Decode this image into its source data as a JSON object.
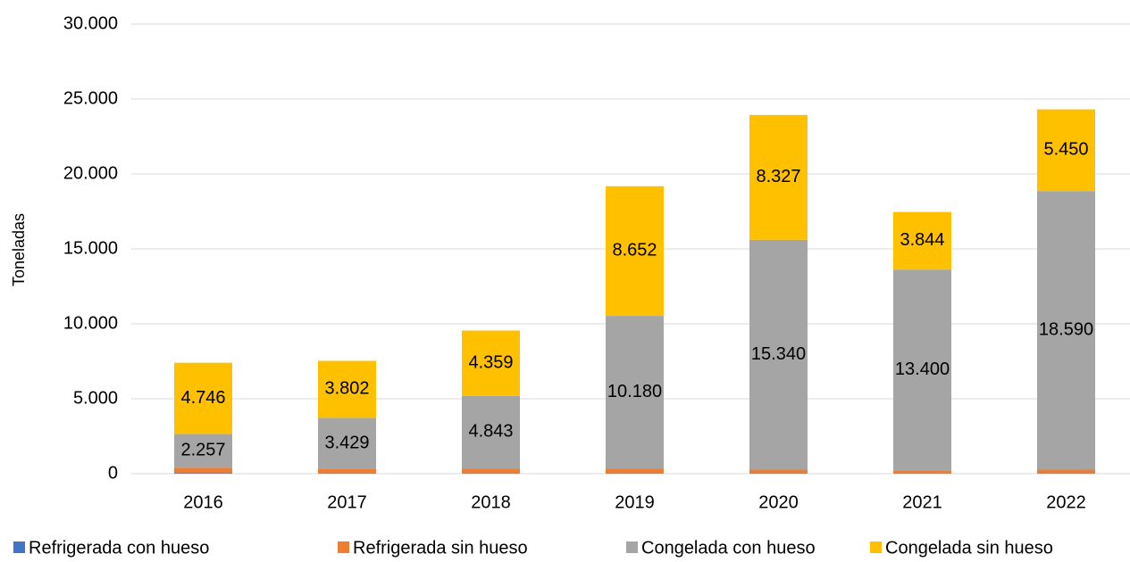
{
  "chart_data": {
    "type": "stacked_bar",
    "y_label": "Toneladas",
    "categories": [
      "2016",
      "2017",
      "2018",
      "2019",
      "2020",
      "2021",
      "2022"
    ],
    "series": [
      {
        "name": "Refrigerada con hueso",
        "color": "#4472c4",
        "values": [
          30,
          20,
          20,
          20,
          20,
          20,
          20
        ]
      },
      {
        "name": "Refrigerada sin hueso",
        "color": "#ed7d31",
        "values": [
          370,
          280,
          330,
          330,
          250,
          200,
          250
        ]
      },
      {
        "name": "Congelada con hueso",
        "color": "#a5a5a5",
        "values": [
          2257,
          3429,
          4843,
          10180,
          15340,
          13400,
          18590
        ],
        "value_labels": [
          "2.257",
          "3.429",
          "4.843",
          "10.180",
          "15.340",
          "13.400",
          "18.590"
        ]
      },
      {
        "name": "Congelada sin hueso",
        "color": "#ffc000",
        "values": [
          4746,
          3802,
          4359,
          8652,
          8327,
          3844,
          5450
        ],
        "value_labels": [
          "4.746",
          "3.802",
          "4.359",
          "8.652",
          "8.327",
          "3.844",
          "5.450"
        ]
      }
    ],
    "ylim": [
      0,
      30000
    ],
    "yticks": [
      0,
      {
        "value": 5000,
        "label": "5.000"
      },
      {
        "value": 10000,
        "label": "10.000"
      },
      {
        "value": 15000,
        "label": "15.000"
      },
      {
        "value": 20000,
        "label": "20.000"
      },
      {
        "value": 25000,
        "label": "25.000"
      },
      {
        "value": 30000,
        "label": "30.000"
      }
    ],
    "grid": true,
    "legend": "bottom"
  }
}
